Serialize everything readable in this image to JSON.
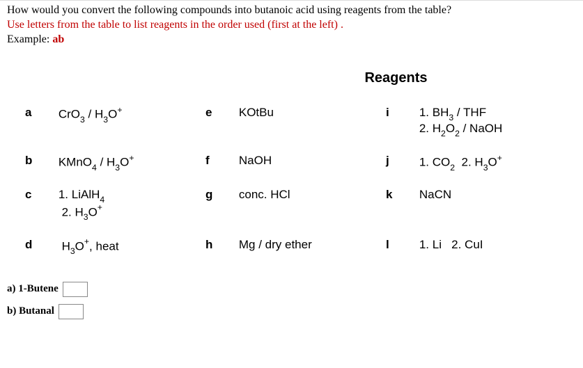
{
  "question": {
    "line1": "How would you convert the following compounds into butanoic acid using reagents from the table?",
    "line2": "Use letters from the table to list reagents in the order used (first at the left) .",
    "line3_prefix": "Example: ",
    "line3_example": "ab"
  },
  "reagents_title": "Reagents",
  "rows": [
    {
      "c1_letter": "a",
      "c1_html": "CrO<span class='sub'>3</span> / H<span class='sub'>3</span>O<span class='sup'>+</span>",
      "c2_letter": "e",
      "c2_html": "KOtBu",
      "c3_letter": "i",
      "c3_html": "1. BH<span class='sub'>3</span> / THF<br>2. H<span class='sub'>2</span>O<span class='sub'>2</span> / NaOH"
    },
    {
      "c1_letter": "b",
      "c1_html": "KMnO<span class='sub'>4</span> / H<span class='sub'>3</span>O<span class='sup'>+</span>",
      "c2_letter": "f",
      "c2_html": "NaOH",
      "c3_letter": "j",
      "c3_html": "1. CO<span class='sub'>2</span>&nbsp; 2. H<span class='sub'>3</span>O<span class='sup'>+</span>"
    },
    {
      "c1_letter": "c",
      "c1_html": "1. LiAlH<span class='sub'>4</span><br>&nbsp;2. H<span class='sub'>3</span>O<span class='sup'>+</span>",
      "c2_letter": "g",
      "c2_html": "conc. HCl",
      "c3_letter": "k",
      "c3_html": "NaCN"
    },
    {
      "c1_letter": "d",
      "c1_html": "&nbsp;H<span class='sub'>3</span>O<span class='sup'>+</span>, heat",
      "c2_letter": "h",
      "c2_html": "Mg / dry ether",
      "c3_letter": "l",
      "c3_html": "1. Li &nbsp; 2. CuI"
    }
  ],
  "answers": [
    {
      "label": "a) 1-Butene",
      "value": ""
    },
    {
      "label": "b) Butanal",
      "value": ""
    }
  ],
  "colors": {
    "question_red": "#c00000",
    "border_gray": "#dcdcdc"
  }
}
